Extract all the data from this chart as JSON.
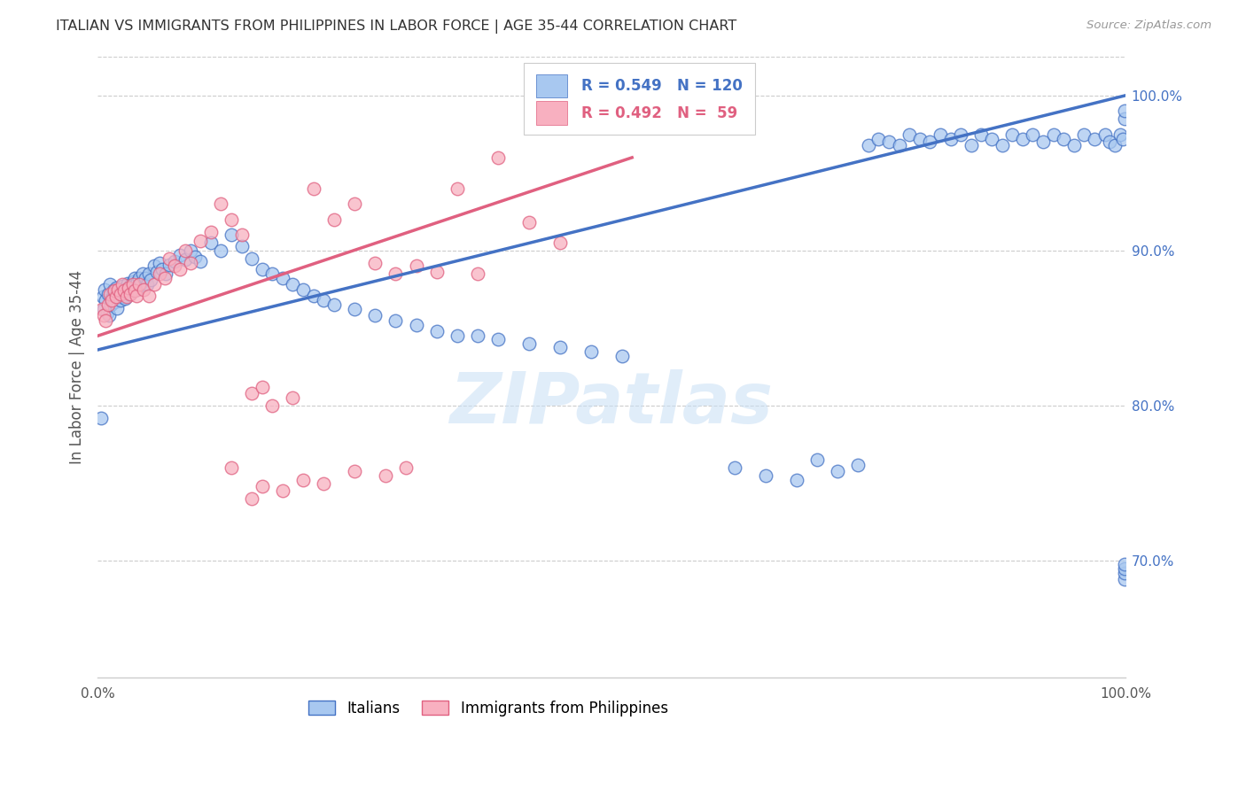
{
  "title": "ITALIAN VS IMMIGRANTS FROM PHILIPPINES IN LABOR FORCE | AGE 35-44 CORRELATION CHART",
  "source": "Source: ZipAtlas.com",
  "ylabel": "In Labor Force | Age 35-44",
  "legend_label1": "Italians",
  "legend_label2": "Immigrants from Philippines",
  "r1": 0.549,
  "n1": 120,
  "r2": 0.492,
  "n2": 59,
  "color1": "#a8c8f0",
  "color2": "#f8b0c0",
  "line_color1": "#4472c4",
  "line_color2": "#e06080",
  "text_color": "#555555",
  "right_tick_color": "#4472c4",
  "xlim": [
    0.0,
    1.0
  ],
  "ylim": [
    0.625,
    1.025
  ],
  "right_yticks": [
    0.7,
    0.8,
    0.9,
    1.0
  ],
  "right_yticklabels": [
    "70.0%",
    "80.0%",
    "90.0%",
    "100.0%"
  ],
  "xticks": [
    0.0,
    0.1,
    0.2,
    0.3,
    0.4,
    0.5,
    0.6,
    0.7,
    0.8,
    0.9,
    1.0
  ],
  "xticklabels": [
    "0.0%",
    "",
    "",
    "",
    "",
    "",
    "",
    "",
    "",
    "",
    "100.0%"
  ],
  "watermark_text": "ZIPatlas",
  "background_color": "#ffffff",
  "scatter1_x": [
    0.003,
    0.005,
    0.006,
    0.007,
    0.008,
    0.009,
    0.01,
    0.011,
    0.012,
    0.013,
    0.014,
    0.015,
    0.016,
    0.017,
    0.018,
    0.019,
    0.02,
    0.021,
    0.022,
    0.023,
    0.024,
    0.025,
    0.026,
    0.027,
    0.028,
    0.029,
    0.03,
    0.031,
    0.032,
    0.033,
    0.034,
    0.035,
    0.036,
    0.037,
    0.038,
    0.039,
    0.04,
    0.042,
    0.044,
    0.046,
    0.048,
    0.05,
    0.052,
    0.055,
    0.058,
    0.06,
    0.063,
    0.066,
    0.07,
    0.075,
    0.08,
    0.085,
    0.09,
    0.095,
    0.1,
    0.11,
    0.12,
    0.13,
    0.14,
    0.15,
    0.16,
    0.17,
    0.18,
    0.19,
    0.2,
    0.21,
    0.22,
    0.23,
    0.25,
    0.27,
    0.29,
    0.31,
    0.33,
    0.35,
    0.37,
    0.39,
    0.42,
    0.45,
    0.48,
    0.51,
    0.62,
    0.65,
    0.68,
    0.7,
    0.72,
    0.74,
    0.75,
    0.76,
    0.77,
    0.78,
    0.79,
    0.8,
    0.81,
    0.82,
    0.83,
    0.84,
    0.85,
    0.86,
    0.87,
    0.88,
    0.89,
    0.9,
    0.91,
    0.92,
    0.93,
    0.94,
    0.95,
    0.96,
    0.97,
    0.98,
    0.985,
    0.99,
    0.995,
    0.998,
    0.999,
    0.999,
    0.999,
    0.999,
    0.999,
    0.999
  ],
  "scatter1_y": [
    0.792,
    0.87,
    0.862,
    0.875,
    0.868,
    0.86,
    0.872,
    0.858,
    0.878,
    0.865,
    0.869,
    0.874,
    0.867,
    0.871,
    0.876,
    0.863,
    0.87,
    0.872,
    0.868,
    0.874,
    0.877,
    0.87,
    0.875,
    0.869,
    0.873,
    0.879,
    0.876,
    0.872,
    0.875,
    0.878,
    0.88,
    0.877,
    0.882,
    0.878,
    0.875,
    0.88,
    0.882,
    0.879,
    0.885,
    0.882,
    0.878,
    0.885,
    0.881,
    0.89,
    0.886,
    0.892,
    0.888,
    0.885,
    0.891,
    0.893,
    0.897,
    0.894,
    0.9,
    0.896,
    0.893,
    0.905,
    0.9,
    0.91,
    0.903,
    0.895,
    0.888,
    0.885,
    0.882,
    0.878,
    0.875,
    0.871,
    0.868,
    0.865,
    0.862,
    0.858,
    0.855,
    0.852,
    0.848,
    0.845,
    0.845,
    0.843,
    0.84,
    0.838,
    0.835,
    0.832,
    0.76,
    0.755,
    0.752,
    0.765,
    0.758,
    0.762,
    0.968,
    0.972,
    0.97,
    0.968,
    0.975,
    0.972,
    0.97,
    0.975,
    0.972,
    0.975,
    0.968,
    0.975,
    0.972,
    0.968,
    0.975,
    0.972,
    0.975,
    0.97,
    0.975,
    0.972,
    0.968,
    0.975,
    0.972,
    0.975,
    0.97,
    0.968,
    0.975,
    0.972,
    0.688,
    0.692,
    0.695,
    0.698,
    0.985,
    0.99
  ],
  "scatter2_x": [
    0.004,
    0.006,
    0.008,
    0.01,
    0.012,
    0.014,
    0.016,
    0.018,
    0.02,
    0.022,
    0.024,
    0.026,
    0.028,
    0.03,
    0.032,
    0.034,
    0.036,
    0.038,
    0.04,
    0.045,
    0.05,
    0.055,
    0.06,
    0.065,
    0.07,
    0.075,
    0.08,
    0.085,
    0.09,
    0.1,
    0.11,
    0.12,
    0.13,
    0.14,
    0.15,
    0.16,
    0.17,
    0.19,
    0.21,
    0.23,
    0.25,
    0.27,
    0.29,
    0.31,
    0.33,
    0.35,
    0.37,
    0.39,
    0.42,
    0.45,
    0.13,
    0.15,
    0.2,
    0.25,
    0.16,
    0.18,
    0.22,
    0.28,
    0.3
  ],
  "scatter2_y": [
    0.862,
    0.858,
    0.855,
    0.865,
    0.872,
    0.868,
    0.874,
    0.87,
    0.875,
    0.872,
    0.878,
    0.874,
    0.87,
    0.876,
    0.872,
    0.878,
    0.874,
    0.871,
    0.878,
    0.875,
    0.871,
    0.878,
    0.885,
    0.882,
    0.895,
    0.89,
    0.888,
    0.9,
    0.892,
    0.906,
    0.912,
    0.93,
    0.92,
    0.91,
    0.808,
    0.812,
    0.8,
    0.805,
    0.94,
    0.92,
    0.93,
    0.892,
    0.885,
    0.89,
    0.886,
    0.94,
    0.885,
    0.96,
    0.918,
    0.905,
    0.76,
    0.74,
    0.752,
    0.758,
    0.748,
    0.745,
    0.75,
    0.755,
    0.76
  ],
  "trendline1_x": [
    0.0,
    1.0
  ],
  "trendline1_y": [
    0.836,
    1.0
  ],
  "trendline2_x": [
    0.0,
    0.52
  ],
  "trendline2_y": [
    0.845,
    0.96
  ]
}
